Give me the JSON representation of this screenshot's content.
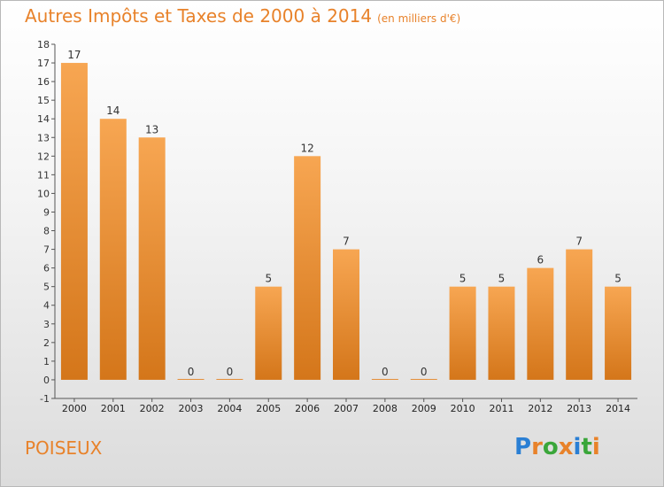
{
  "title": "Autres Impôts et Taxes de 2000 à 2014",
  "title_unit": "(en milliers d'€)",
  "commune": "POISEUX",
  "logo": {
    "text": "Proxiti",
    "letters": [
      "P",
      "r",
      "o",
      "x",
      "i",
      "t",
      "i"
    ],
    "colors": [
      "#2a7fd4",
      "#e8822a",
      "#3aa63a",
      "#e8822a",
      "#2a7fd4",
      "#3aa63a",
      "#e8822a"
    ]
  },
  "colors": {
    "title": "#e8822a",
    "bar_light": "#f7a652",
    "bar_dark": "#d4761a",
    "axis": "#555555"
  },
  "chart_data": {
    "type": "bar",
    "title": "Autres Impôts et Taxes de 2000 à 2014",
    "subtitle": "(en milliers d'€)",
    "categories": [
      "2000",
      "2001",
      "2002",
      "2003",
      "2004",
      "2005",
      "2006",
      "2007",
      "2008",
      "2009",
      "2010",
      "2011",
      "2012",
      "2013",
      "2014"
    ],
    "values": [
      17,
      14,
      13,
      0,
      0,
      5,
      12,
      7,
      0,
      0,
      5,
      5,
      6,
      7,
      5
    ],
    "ylim": [
      -1,
      18
    ],
    "yticks": [
      -1,
      0,
      1,
      2,
      3,
      4,
      5,
      6,
      7,
      8,
      9,
      10,
      11,
      12,
      13,
      14,
      15,
      16,
      17,
      18
    ],
    "grid": false,
    "xlabel": "",
    "ylabel": ""
  }
}
